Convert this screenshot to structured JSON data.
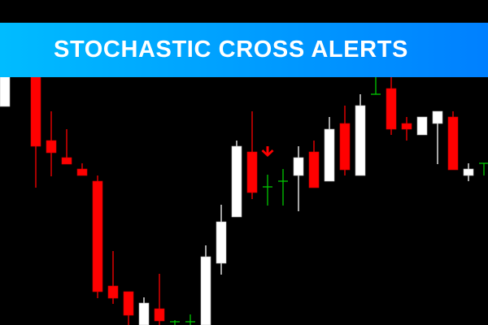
{
  "banner": {
    "title": "STOCHASTIC CROSS ALERTS"
  },
  "colors": {
    "bull": "#ffffff",
    "bear": "#ff0000",
    "doji": "#00c800",
    "signal_arrow": "#ff0000",
    "background": "#000000",
    "banner_start": "#00bcff",
    "banner_end": "#0080ff"
  },
  "chart_data": {
    "type": "candlestick",
    "title": "",
    "axes_visible": false,
    "grid": false,
    "price_range": [
      0,
      100
    ],
    "candles": [
      {
        "bar": 1,
        "o": 67.25,
        "h": 78.75,
        "l": 67.25,
        "c": 77.5
      },
      {
        "bar": 2,
        "o": null,
        "h": null,
        "l": null,
        "c": null
      },
      {
        "bar": 3,
        "o": 77,
        "h": 77.5,
        "l": 42.25,
        "c": 55
      },
      {
        "bar": 4,
        "o": 56.75,
        "h": 65.75,
        "l": 45.75,
        "c": 53
      },
      {
        "bar": 5,
        "o": 51.5,
        "h": 60.25,
        "l": 49.5,
        "c": 49.5
      },
      {
        "bar": 6,
        "o": 48,
        "h": 49.75,
        "l": 46,
        "c": 46
      },
      {
        "bar": 7,
        "o": 44.25,
        "h": 46,
        "l": 8.25,
        "c": 10.25
      },
      {
        "bar": 8,
        "o": 12,
        "h": 22.75,
        "l": 6.5,
        "c": 8.25
      },
      {
        "bar": 9,
        "o": 10.25,
        "h": 10.25,
        "l": 0,
        "c": 3
      },
      {
        "bar": 10,
        "o": 0,
        "h": 8.5,
        "l": 0,
        "c": 6.75
      },
      {
        "bar": 11,
        "o": 5,
        "h": 15.75,
        "l": 0,
        "c": 1.25
      },
      {
        "bar": 12,
        "o": 1,
        "h": 1.5,
        "l": 0,
        "c": 1
      },
      {
        "bar": 13,
        "o": 1,
        "h": 3.25,
        "l": 0,
        "c": 1
      },
      {
        "bar": 14,
        "o": 0,
        "h": 24.5,
        "l": 0,
        "c": 21
      },
      {
        "bar": 15,
        "o": 19,
        "h": 37,
        "l": 15.5,
        "c": 31.75
      },
      {
        "bar": 16,
        "o": 33.25,
        "h": 56.75,
        "l": 33.25,
        "c": 55
      },
      {
        "bar": 17,
        "o": 53.25,
        "h": 65.75,
        "l": 38.75,
        "c": 40.75
      },
      {
        "bar": 18,
        "o": 42.5,
        "h": 46.25,
        "l": 36.75,
        "c": 42.5
      },
      {
        "bar": 19,
        "o": 44.25,
        "h": 48,
        "l": 36.75,
        "c": 44.25
      },
      {
        "bar": 20,
        "o": 46,
        "h": 55,
        "l": 35,
        "c": 51.5
      },
      {
        "bar": 21,
        "o": 53.25,
        "h": 56.75,
        "l": 42.25,
        "c": 42.25
      },
      {
        "bar": 22,
        "o": 44.25,
        "h": 64,
        "l": 44.25,
        "c": 60.25
      },
      {
        "bar": 23,
        "o": 62,
        "h": 67.5,
        "l": 46,
        "c": 47.75
      },
      {
        "bar": 24,
        "o": 46,
        "h": 71,
        "l": 46,
        "c": 67.5
      },
      {
        "bar": 25,
        "o": 71,
        "h": 76.25,
        "l": 71,
        "c": 71
      },
      {
        "bar": 26,
        "o": 72.75,
        "h": 76.25,
        "l": 58.5,
        "c": 60.25
      },
      {
        "bar": 27,
        "o": 62,
        "h": 64,
        "l": 56.75,
        "c": 60.25
      },
      {
        "bar": 28,
        "o": 58.5,
        "h": 64,
        "l": 58.5,
        "c": 64
      },
      {
        "bar": 29,
        "o": 62,
        "h": 65.75,
        "l": 49.5,
        "c": 65.75
      },
      {
        "bar": 30,
        "o": 64,
        "h": 65.75,
        "l": 47.75,
        "c": 47.75
      },
      {
        "bar": 31,
        "o": 46,
        "h": 49.75,
        "l": 44.25,
        "c": 48
      },
      {
        "bar": 32,
        "o": 49.75,
        "h": 49.75,
        "l": 46,
        "c": 49.75
      }
    ],
    "annotations": [
      {
        "type": "sell-arrow",
        "bar": 18,
        "price": 55,
        "direction": "down"
      }
    ]
  }
}
